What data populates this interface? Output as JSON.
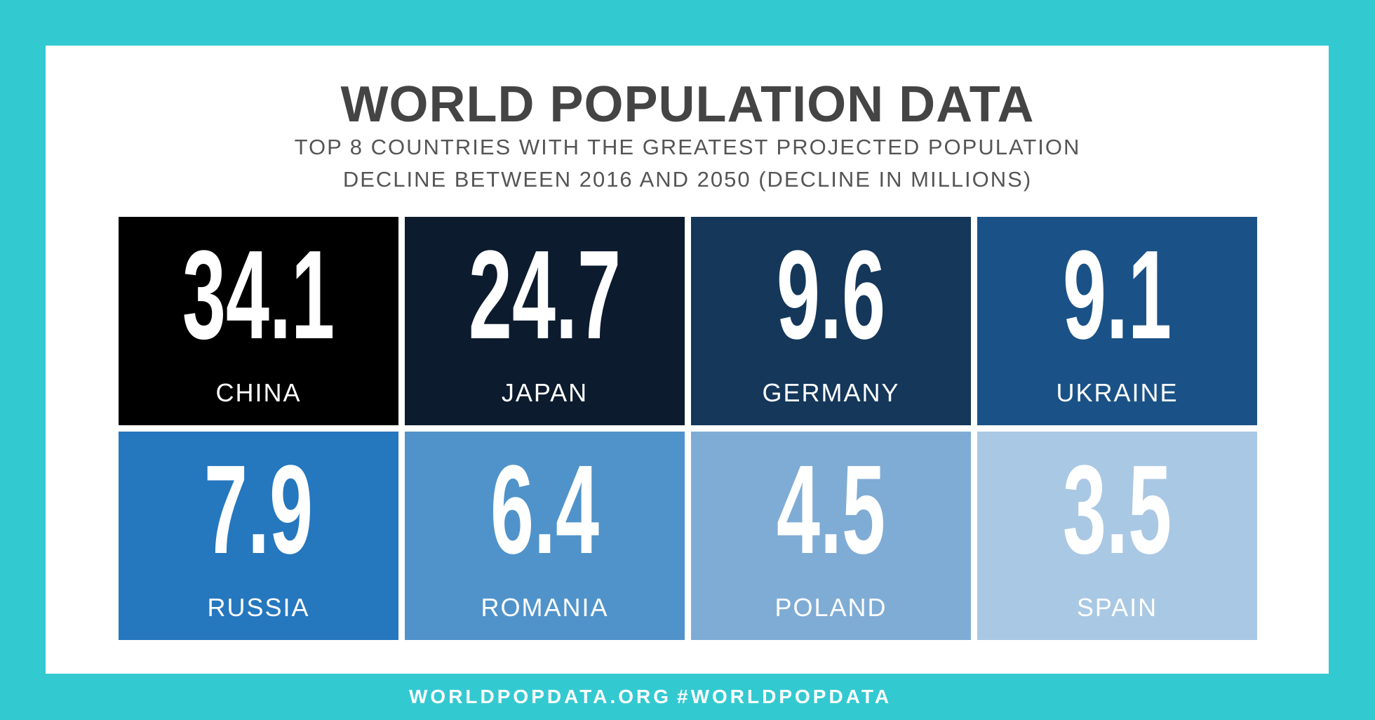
{
  "header": {
    "title": "WORLD POPULATION DATA",
    "subtitle": [
      "TOP 8 COUNTRIES WITH THE GREATEST PROJECTED  POPULATION",
      "DECLINE BETWEEN 2016 AND 2050 (DECLINE IN MILLIONS)"
    ]
  },
  "tiles": [
    {
      "value": 34.1,
      "label": "CHINA",
      "color": "#000000"
    },
    {
      "value": 24.7,
      "label": "JAPAN",
      "color": "#0c1b2e"
    },
    {
      "value": 9.6,
      "label": "GERMANY",
      "color": "#14375a"
    },
    {
      "value": 9.1,
      "label": "UKRAINE",
      "color": "#1a5287"
    },
    {
      "value": 7.9,
      "label": "RUSSIA",
      "color": "#2577be"
    },
    {
      "value": 6.4,
      "label": "ROMANIA",
      "color": "#5093ca"
    },
    {
      "value": 4.5,
      "label": "POLAND",
      "color": "#7facd5"
    },
    {
      "value": 3.5,
      "label": "SPAIN",
      "color": "#a9c8e4"
    }
  ],
  "footer": [
    "WORLDPOPDATA.ORG",
    "#WORLDPOPDATA"
  ]
}
